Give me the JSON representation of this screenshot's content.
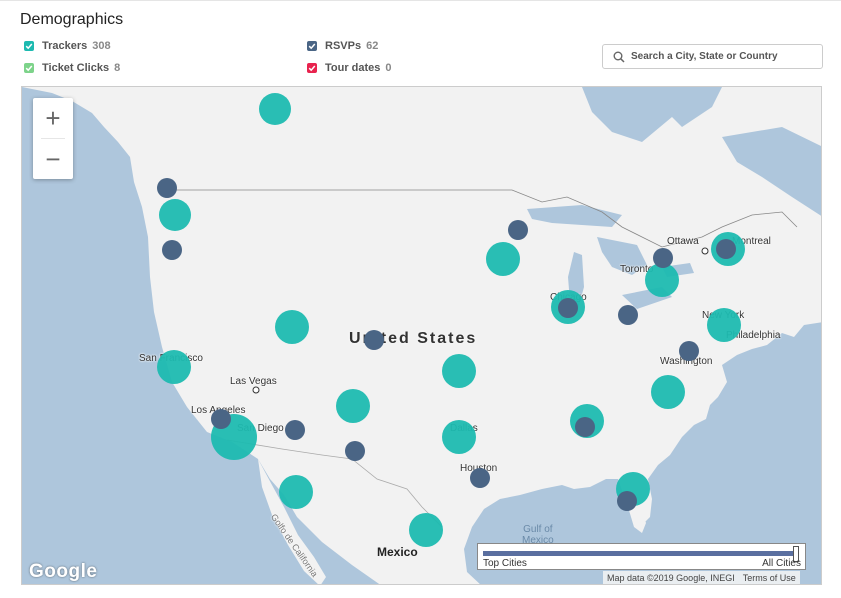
{
  "title": "Demographics",
  "legend": [
    {
      "label": "Trackers",
      "count": "308",
      "color": "#1dbab0"
    },
    {
      "label": "RSVPs",
      "count": "62",
      "color": "#4a6585"
    },
    {
      "label": "Ticket Clicks",
      "count": "8",
      "color": "#7dd38a"
    },
    {
      "label": "Tour dates",
      "count": "0",
      "color": "#e8234e"
    }
  ],
  "search": {
    "placeholder": "Search a City, State or Country"
  },
  "map": {
    "zoom_in": "+",
    "zoom_out": "−",
    "country_label": "United States",
    "mexico_label": "Mexico",
    "gulf_label_1": "Gulf of",
    "gulf_label_2": "Mexico",
    "cities": {
      "ottawa": "Ottawa",
      "montreal": "Montreal",
      "toronto": "Toronto",
      "chicago": "Chicago",
      "new_york": "New York",
      "philadelphia": "Philadelphia",
      "washington": "Washington",
      "san_francisco": "San Francisco",
      "las_vegas": "Las Vegas",
      "los_angeles": "Los Angeles",
      "san_diego": "San Diego",
      "dallas": "Dallas",
      "houston": "Houston",
      "baja": "Golfo de California"
    },
    "google": "Google",
    "attribution": "Map data ©2019 Google, INEGI",
    "terms": "Terms of Use"
  },
  "slider": {
    "left_label": "Top Cities",
    "right_label": "All Cities"
  }
}
